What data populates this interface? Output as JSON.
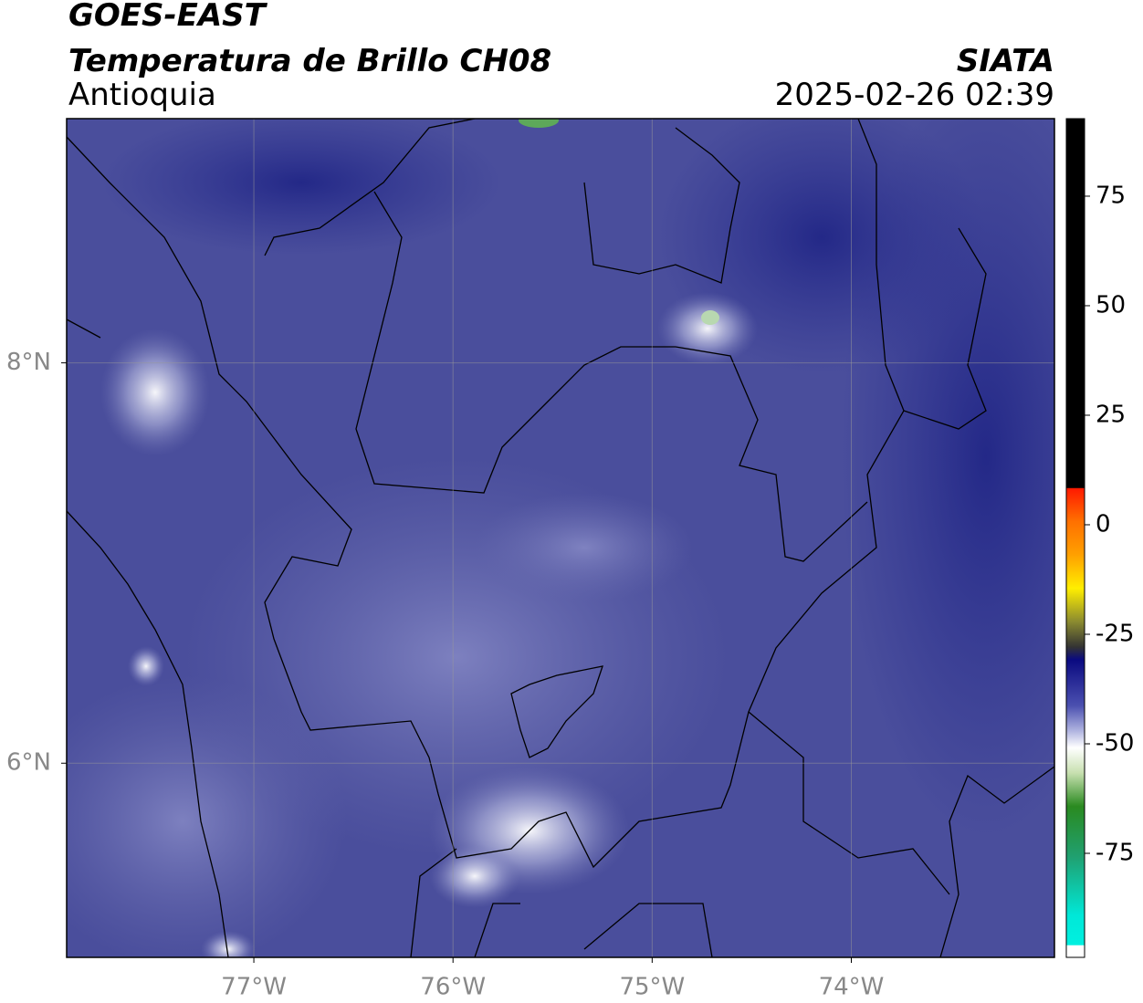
{
  "title": "GOES-EAST",
  "subtitle": "Temperatura de Brillo CH08",
  "region": "Antioquia",
  "source": "SIATA",
  "timestamp": "2025-02-26 02:39",
  "map": {
    "xlim": [
      -77.94,
      -72.98
    ],
    "ylim": [
      5.03,
      9.22
    ],
    "xticks": [
      {
        "value": -77,
        "label": "77°W"
      },
      {
        "value": -76,
        "label": "76°W"
      },
      {
        "value": -75,
        "label": "75°W"
      },
      {
        "value": -74,
        "label": "74°W"
      }
    ],
    "yticks": [
      {
        "value": 8,
        "label": "8°N"
      },
      {
        "value": 6,
        "label": "6°N"
      }
    ],
    "grid": true
  },
  "colorbar": {
    "lim": [
      -98.75,
      92.7
    ],
    "ticks": [
      75,
      50,
      25,
      0,
      -25,
      -50,
      -75
    ]
  }
}
